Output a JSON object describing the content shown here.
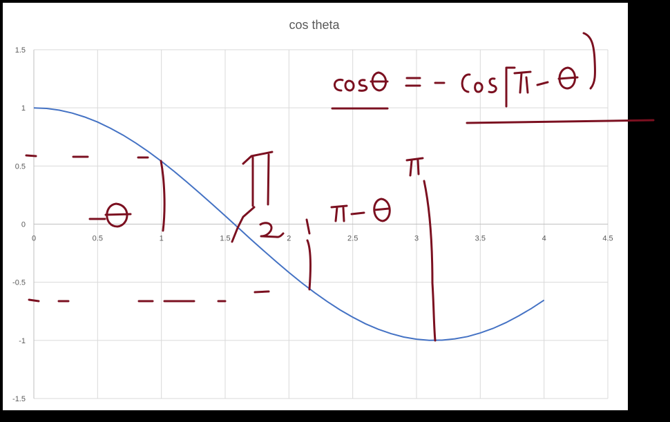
{
  "chart_data": {
    "type": "line",
    "title": "cos theta",
    "xlabel": "",
    "ylabel": "",
    "xlim": [
      0,
      4.5
    ],
    "ylim": [
      -1.5,
      1.5
    ],
    "x_ticks": [
      "0",
      "0.5",
      "1",
      "1.5",
      "2",
      "2.5",
      "3",
      "3.5",
      "4",
      "4.5"
    ],
    "y_ticks": [
      "1.5",
      "1",
      "0.5",
      "0",
      "-0.5",
      "-1",
      "-1.5"
    ],
    "grid": true,
    "series": [
      {
        "color": "#4472C4",
        "x": [
          0,
          0.1,
          0.2,
          0.3,
          0.4,
          0.5,
          0.6,
          0.7,
          0.8,
          0.9,
          1.0,
          1.1,
          1.2,
          1.3,
          1.4,
          1.5,
          1.6,
          1.7,
          1.8,
          1.9,
          2.0,
          2.1,
          2.2,
          2.3,
          2.4,
          2.5,
          2.6,
          2.7,
          2.8,
          2.9,
          3.0,
          3.1,
          3.2,
          3.3,
          3.4,
          3.5,
          3.6,
          3.7,
          3.8,
          3.9,
          4.0
        ],
        "values": [
          1.0,
          0.995,
          0.98,
          0.955,
          0.921,
          0.878,
          0.825,
          0.765,
          0.697,
          0.622,
          0.54,
          0.454,
          0.362,
          0.267,
          0.17,
          0.071,
          -0.029,
          -0.129,
          -0.227,
          -0.323,
          -0.416,
          -0.505,
          -0.589,
          -0.666,
          -0.737,
          -0.801,
          -0.857,
          -0.904,
          -0.942,
          -0.971,
          -0.99,
          -0.999,
          -0.998,
          -0.987,
          -0.967,
          -0.936,
          -0.897,
          -0.848,
          -0.79,
          -0.726,
          -0.654
        ]
      }
    ],
    "annotations": [
      "cosθ = −Cos(π − θ)",
      "θ",
      "π − θ",
      "π",
      "π/2"
    ],
    "annotation_color": "#7B1020"
  }
}
